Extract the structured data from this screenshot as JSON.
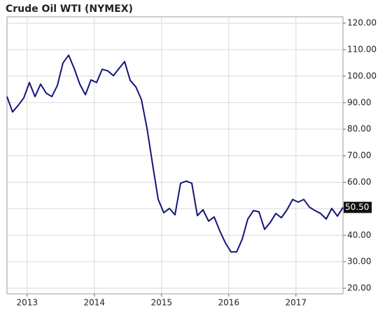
{
  "chart_data": {
    "type": "line",
    "title": "Crude Oil WTI (NYMEX)",
    "x": [
      2012.7,
      2012.783,
      2012.867,
      2012.95,
      2013.033,
      2013.117,
      2013.2,
      2013.283,
      2013.367,
      2013.45,
      2013.533,
      2013.617,
      2013.7,
      2013.783,
      2013.867,
      2013.95,
      2014.033,
      2014.117,
      2014.2,
      2014.283,
      2014.367,
      2014.45,
      2014.533,
      2014.617,
      2014.7,
      2014.783,
      2014.867,
      2014.95,
      2015.033,
      2015.117,
      2015.2,
      2015.283,
      2015.367,
      2015.45,
      2015.533,
      2015.617,
      2015.7,
      2015.783,
      2015.867,
      2015.95,
      2016.033,
      2016.117,
      2016.2,
      2016.283,
      2016.367,
      2016.45,
      2016.533,
      2016.617,
      2016.7,
      2016.783,
      2016.867,
      2016.95,
      2017.033,
      2017.117,
      2017.2,
      2017.283,
      2017.367,
      2017.45,
      2017.533,
      2017.617,
      2017.7
    ],
    "series": [
      {
        "name": "Crude Oil WTI",
        "color": "#14147a",
        "values": [
          92.3,
          86.5,
          89,
          91.8,
          97.6,
          92.3,
          97,
          93.6,
          92.3,
          96.5,
          105,
          107.9,
          102.9,
          97,
          93,
          98.6,
          97.6,
          102.6,
          102,
          100.2,
          102.9,
          105.5,
          98.4,
          96,
          91.2,
          80.4,
          66.7,
          53.5,
          48.5,
          50.1,
          47.7,
          59.6,
          60.4,
          59.6,
          47.4,
          49.6,
          45.3,
          46.9,
          41.6,
          37.1,
          33.7,
          33.7,
          38.5,
          46.1,
          49.3,
          48.8,
          42.2,
          44.8,
          48.2,
          46.6,
          49.6,
          53.5,
          52.5,
          53.5,
          50.6,
          49.3,
          48.2,
          46.1,
          50.1,
          47.2,
          50.5
        ],
        "last_label": "50.50"
      }
    ],
    "xlim": [
      2012.7,
      2017.7
    ],
    "xticks": [
      2013,
      2014,
      2015,
      2016,
      2017
    ],
    "ylim": [
      17.9,
      122.4
    ],
    "yticks": [
      {
        "value": 20,
        "label": "20.00"
      },
      {
        "value": 30,
        "label": "30.00"
      },
      {
        "value": 40,
        "label": "40.00"
      },
      {
        "value": 50,
        "label": "50.00"
      },
      {
        "value": 60,
        "label": "60.00"
      },
      {
        "value": 70,
        "label": "70.00"
      },
      {
        "value": 80,
        "label": "80.00"
      },
      {
        "value": 90,
        "label": "90.00"
      },
      {
        "value": 100,
        "label": "100.00"
      },
      {
        "value": 110,
        "label": "110.00"
      },
      {
        "value": 120,
        "label": "120.00"
      }
    ],
    "grid": true
  }
}
